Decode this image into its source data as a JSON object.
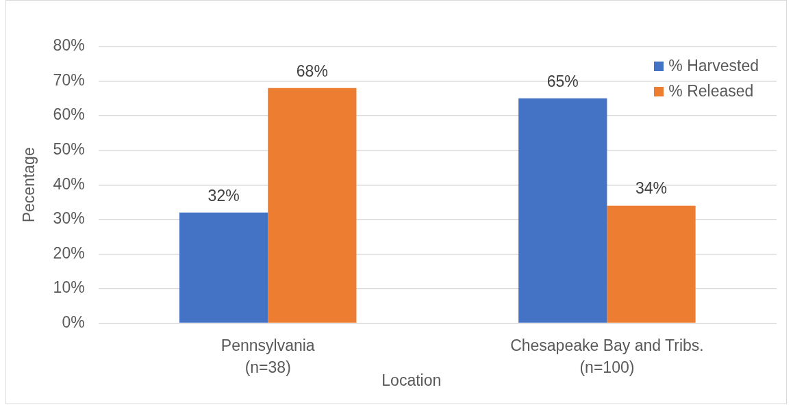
{
  "chart_data": {
    "type": "bar",
    "xlabel": "Location",
    "ylabel": "Pecentage",
    "categories": [
      "Pennsylvania\n(n=38)",
      "Chesapeake Bay and Tribs.\n(n=100)"
    ],
    "series": [
      {
        "name": "% Harvested",
        "color": "#4472c4",
        "values": [
          32,
          65
        ],
        "value_labels": [
          "32%",
          "65%"
        ]
      },
      {
        "name": "% Released",
        "color": "#ed7d31",
        "values": [
          68,
          34
        ],
        "value_labels": [
          "68%",
          "34%"
        ]
      }
    ],
    "ylim": [
      0,
      80
    ],
    "yticks": [
      {
        "value": 0,
        "label": "0%"
      },
      {
        "value": 10,
        "label": "10%"
      },
      {
        "value": 20,
        "label": "20%"
      },
      {
        "value": 30,
        "label": "30%"
      },
      {
        "value": 40,
        "label": "40%"
      },
      {
        "value": 50,
        "label": "50%"
      },
      {
        "value": 60,
        "label": "60%"
      },
      {
        "value": 70,
        "label": "70%"
      },
      {
        "value": 80,
        "label": "80%"
      }
    ],
    "grid": "y",
    "legend": "top right"
  }
}
